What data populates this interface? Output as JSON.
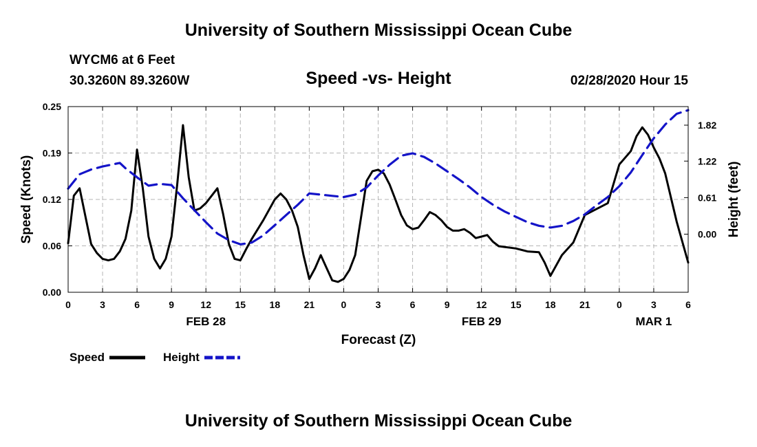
{
  "header": {
    "title": "University of Southern Mississippi Ocean Cube",
    "station": "WYCM6 at 6 Feet",
    "coords": "30.3260N 89.3260W",
    "timestamp": "02/28/2020 Hour 15"
  },
  "footer": {
    "title": "University of Southern Mississippi Ocean Cube"
  },
  "colors": {
    "speed": "#000000",
    "height": "#1414c8",
    "grid": "#b4b4b4"
  },
  "chart_data": {
    "type": "line",
    "title": "Speed -vs- Height",
    "xlabel": "Forecast (Z)",
    "ylabel_left": "Speed (Knots)",
    "ylabel_right": "Height (feet)",
    "x_range_hours": [
      0,
      54
    ],
    "y_left_range": [
      0,
      0.25
    ],
    "y_right_range": [
      -0.97,
      2.13
    ],
    "x_ticks": [
      {
        "h": 0,
        "label": "0"
      },
      {
        "h": 3,
        "label": "3"
      },
      {
        "h": 6,
        "label": "6"
      },
      {
        "h": 9,
        "label": "9"
      },
      {
        "h": 12,
        "label": "12"
      },
      {
        "h": 15,
        "label": "15"
      },
      {
        "h": 18,
        "label": "18"
      },
      {
        "h": 21,
        "label": "21"
      },
      {
        "h": 24,
        "label": "0"
      },
      {
        "h": 27,
        "label": "3"
      },
      {
        "h": 30,
        "label": "6"
      },
      {
        "h": 33,
        "label": "9"
      },
      {
        "h": 36,
        "label": "12"
      },
      {
        "h": 39,
        "label": "15"
      },
      {
        "h": 42,
        "label": "18"
      },
      {
        "h": 45,
        "label": "21"
      },
      {
        "h": 48,
        "label": "0"
      },
      {
        "h": 51,
        "label": "3"
      },
      {
        "h": 54,
        "label": "6"
      }
    ],
    "date_labels": [
      {
        "h": 12,
        "label": "FEB 28"
      },
      {
        "h": 36,
        "label": "FEB 29"
      },
      {
        "h": 51,
        "label": "MAR 1"
      }
    ],
    "y_left_ticks": [
      {
        "v": 0,
        "label": "0.00"
      },
      {
        "v": 0.0625,
        "label": "0.06"
      },
      {
        "v": 0.125,
        "label": "0.12"
      },
      {
        "v": 0.1875,
        "label": "0.19"
      },
      {
        "v": 0.25,
        "label": "0.25"
      }
    ],
    "y_right_ticks": [
      {
        "v": 0,
        "label": "0.00"
      },
      {
        "v": 0.61,
        "label": "0.61"
      },
      {
        "v": 1.22,
        "label": "1.22"
      },
      {
        "v": 1.82,
        "label": "1.82"
      }
    ],
    "legend": [
      {
        "name": "Speed",
        "style": "solid"
      },
      {
        "name": "Height",
        "style": "dashed"
      }
    ],
    "series": [
      {
        "name": "Speed",
        "axis": "left",
        "style": "solid",
        "points": [
          [
            0,
            0.066
          ],
          [
            0.5,
            0.13
          ],
          [
            1,
            0.14
          ],
          [
            2,
            0.065
          ],
          [
            2.5,
            0.053
          ],
          [
            3,
            0.045
          ],
          [
            3.5,
            0.043
          ],
          [
            4,
            0.045
          ],
          [
            4.5,
            0.055
          ],
          [
            5,
            0.072
          ],
          [
            5.5,
            0.11
          ],
          [
            6,
            0.192
          ],
          [
            6.5,
            0.14
          ],
          [
            7,
            0.075
          ],
          [
            7.5,
            0.045
          ],
          [
            8,
            0.032
          ],
          [
            8.5,
            0.045
          ],
          [
            9,
            0.075
          ],
          [
            9.5,
            0.145
          ],
          [
            10,
            0.225
          ],
          [
            10.5,
            0.155
          ],
          [
            11,
            0.11
          ],
          [
            11.5,
            0.113
          ],
          [
            12,
            0.12
          ],
          [
            12.5,
            0.13
          ],
          [
            13,
            0.14
          ],
          [
            13.5,
            0.105
          ],
          [
            14,
            0.065
          ],
          [
            14.5,
            0.045
          ],
          [
            15,
            0.043
          ],
          [
            15.5,
            0.058
          ],
          [
            16,
            0.072
          ],
          [
            17,
            0.097
          ],
          [
            18,
            0.125
          ],
          [
            18.5,
            0.133
          ],
          [
            19,
            0.125
          ],
          [
            19.5,
            0.11
          ],
          [
            20,
            0.088
          ],
          [
            20.5,
            0.05
          ],
          [
            21,
            0.018
          ],
          [
            21.5,
            0.032
          ],
          [
            22,
            0.05
          ],
          [
            22.5,
            0.033
          ],
          [
            23,
            0.016
          ],
          [
            23.5,
            0.014
          ],
          [
            24,
            0.018
          ],
          [
            24.5,
            0.03
          ],
          [
            25,
            0.05
          ],
          [
            25.5,
            0.1
          ],
          [
            26,
            0.15
          ],
          [
            26.5,
            0.163
          ],
          [
            27,
            0.165
          ],
          [
            27.5,
            0.16
          ],
          [
            28,
            0.145
          ],
          [
            28.5,
            0.125
          ],
          [
            29,
            0.104
          ],
          [
            29.5,
            0.09
          ],
          [
            30,
            0.085
          ],
          [
            30.5,
            0.087
          ],
          [
            31,
            0.097
          ],
          [
            31.5,
            0.108
          ],
          [
            32,
            0.104
          ],
          [
            32.5,
            0.097
          ],
          [
            33,
            0.088
          ],
          [
            33.5,
            0.083
          ],
          [
            34,
            0.083
          ],
          [
            34.5,
            0.085
          ],
          [
            35,
            0.08
          ],
          [
            35.5,
            0.073
          ],
          [
            36,
            0.075
          ],
          [
            36.5,
            0.077
          ],
          [
            37,
            0.068
          ],
          [
            37.5,
            0.062
          ],
          [
            38,
            0.061
          ],
          [
            38.5,
            0.06
          ],
          [
            39,
            0.059
          ],
          [
            40,
            0.055
          ],
          [
            41,
            0.054
          ],
          [
            41.5,
            0.04
          ],
          [
            42,
            0.022
          ],
          [
            43,
            0.05
          ],
          [
            44,
            0.067
          ],
          [
            45,
            0.104
          ],
          [
            47,
            0.12
          ],
          [
            48,
            0.172
          ],
          [
            49,
            0.19
          ],
          [
            49.5,
            0.21
          ],
          [
            50,
            0.222
          ],
          [
            50.5,
            0.212
          ],
          [
            51,
            0.195
          ],
          [
            51.5,
            0.18
          ],
          [
            52,
            0.16
          ],
          [
            53,
            0.095
          ],
          [
            54,
            0.04
          ]
        ]
      },
      {
        "name": "Height",
        "axis": "right",
        "style": "dashed",
        "points": [
          [
            0,
            0.76
          ],
          [
            1,
            1
          ],
          [
            2,
            1.08
          ],
          [
            3,
            1.13
          ],
          [
            4.5,
            1.19
          ],
          [
            5,
            1.1
          ],
          [
            6,
            0.95
          ],
          [
            7,
            0.81
          ],
          [
            8,
            0.84
          ],
          [
            9,
            0.82
          ],
          [
            10,
            0.6
          ],
          [
            11,
            0.4
          ],
          [
            12,
            0.2
          ],
          [
            13,
            0.01
          ],
          [
            14,
            -0.1
          ],
          [
            15,
            -0.17
          ],
          [
            16,
            -0.14
          ],
          [
            17,
            -0.02
          ],
          [
            18,
            0.15
          ],
          [
            19,
            0.32
          ],
          [
            20,
            0.49
          ],
          [
            21,
            0.68
          ],
          [
            22,
            0.66
          ],
          [
            23,
            0.64
          ],
          [
            24,
            0.62
          ],
          [
            25,
            0.66
          ],
          [
            26,
            0.78
          ],
          [
            27,
            0.98
          ],
          [
            28,
            1.16
          ],
          [
            29,
            1.31
          ],
          [
            30,
            1.35
          ],
          [
            31,
            1.29
          ],
          [
            32,
            1.18
          ],
          [
            33,
            1.05
          ],
          [
            34,
            0.92
          ],
          [
            35,
            0.78
          ],
          [
            36,
            0.62
          ],
          [
            37,
            0.49
          ],
          [
            38,
            0.38
          ],
          [
            39,
            0.29
          ],
          [
            40,
            0.2
          ],
          [
            41,
            0.14
          ],
          [
            42,
            0.11
          ],
          [
            43,
            0.14
          ],
          [
            44,
            0.22
          ],
          [
            45,
            0.33
          ],
          [
            46,
            0.48
          ],
          [
            47,
            0.62
          ],
          [
            48,
            0.8
          ],
          [
            49,
            1.03
          ],
          [
            50,
            1.32
          ],
          [
            51,
            1.6
          ],
          [
            52,
            1.83
          ],
          [
            53,
            2.01
          ],
          [
            54,
            2.07
          ]
        ]
      }
    ]
  }
}
